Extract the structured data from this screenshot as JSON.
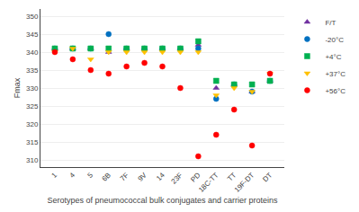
{
  "chart_data": {
    "type": "scatter",
    "categories": [
      "1",
      "4",
      "5",
      "6B",
      "7F",
      "9V",
      "14",
      "23F",
      "PD",
      "18C-TT",
      "TT",
      "19F-DT",
      "DT"
    ],
    "series": [
      {
        "name": "F/T",
        "color": "#7030A0",
        "marker": "triangle-up",
        "values": [
          341,
          341,
          341,
          340,
          341,
          341,
          341,
          341,
          342,
          330,
          331,
          329,
          332
        ]
      },
      {
        "name": "-20°C",
        "color": "#0070C0",
        "marker": "circle",
        "values": [
          341,
          341,
          341,
          345,
          341,
          341,
          341,
          341,
          341,
          327,
          331,
          329,
          332
        ]
      },
      {
        "name": "+4°C",
        "color": "#00B050",
        "marker": "square",
        "values": [
          341,
          341,
          341,
          341,
          341,
          341,
          341,
          341,
          343,
          332,
          331,
          331,
          332
        ]
      },
      {
        "name": "+37°C",
        "color": "#FFC000",
        "marker": "triangle-down",
        "values": [
          340,
          341,
          338,
          340,
          340,
          340,
          340,
          340,
          340,
          328,
          330,
          329,
          334
        ]
      },
      {
        "name": "+56°C",
        "color": "#FF0000",
        "marker": "circle",
        "values": [
          340,
          338,
          335,
          334,
          336,
          337,
          336,
          330,
          311,
          317,
          324,
          314,
          334
        ]
      }
    ],
    "xlabel": "Serotypes of pneumococcal bulk conjugates and carrier proteins",
    "ylabel": "Fmax",
    "ylim": [
      308,
      352
    ],
    "yticks": [
      310,
      315,
      320,
      325,
      330,
      335,
      340,
      345,
      350
    ],
    "grid": "y",
    "legend": "upper right"
  }
}
